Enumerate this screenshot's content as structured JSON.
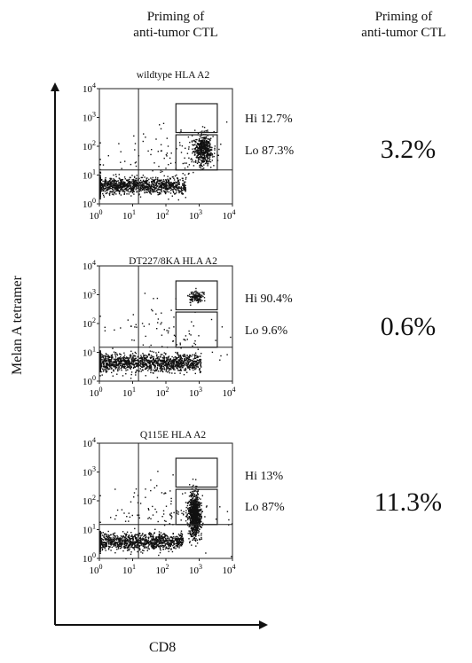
{
  "headers": {
    "left": [
      "Priming of",
      "anti-tumor CTL"
    ],
    "right": [
      "Priming of",
      "anti-tumor CTL"
    ]
  },
  "axes": {
    "y_label": "Melan A tetramer",
    "x_label": "CD8"
  },
  "tick_labels": [
    {
      "base": "10",
      "exp": "0"
    },
    {
      "base": "10",
      "exp": "1"
    },
    {
      "base": "10",
      "exp": "2"
    },
    {
      "base": "10",
      "exp": "3"
    },
    {
      "base": "10",
      "exp": "4"
    }
  ],
  "colors": {
    "dot": "#111111",
    "frame": "#222222",
    "background": "#ffffff"
  },
  "chart_data": [
    {
      "type": "scatter",
      "title": "wildtype HLA A2",
      "xscale": "log",
      "yscale": "log",
      "xlim": [
        1,
        10000
      ],
      "ylim": [
        1,
        10000
      ],
      "gates": [
        {
          "label": "Hi 12.7%",
          "x": [
            200,
            3500
          ],
          "y": [
            300,
            3000
          ]
        },
        {
          "label": "Lo 87.3%",
          "x": [
            200,
            3500
          ],
          "y": [
            15,
            250
          ]
        }
      ],
      "priming_percent": "3.2%",
      "populations": [
        {
          "name": "double negative",
          "x_log_center": 0.9,
          "x_log_spread": 1.05,
          "y_log_center": 0.65,
          "y_log_spread": 0.28,
          "n": 1400
        },
        {
          "name": "CD8+ tetramer+",
          "x_log_center": 3.1,
          "x_log_spread": 0.28,
          "y_log_center": 1.9,
          "y_log_spread": 0.55,
          "n": 520
        },
        {
          "name": "scatter",
          "x_log_center": 2.0,
          "x_log_spread": 1.8,
          "y_log_center": 1.5,
          "y_log_spread": 1.1,
          "n": 110
        }
      ]
    },
    {
      "type": "scatter",
      "title": "DT227/8KA HLA A2",
      "xscale": "log",
      "yscale": "log",
      "xlim": [
        1,
        10000
      ],
      "ylim": [
        1,
        10000
      ],
      "gates": [
        {
          "label": "Hi 90.4%",
          "x": [
            200,
            3500
          ],
          "y": [
            300,
            3000
          ]
        },
        {
          "label": "Lo 9.6%",
          "x": [
            200,
            3500
          ],
          "y": [
            15,
            250
          ]
        }
      ],
      "priming_percent": "0.6%",
      "populations": [
        {
          "name": "double negative",
          "x_log_center": 1.2,
          "x_log_spread": 1.15,
          "y_log_center": 0.65,
          "y_log_spread": 0.3,
          "n": 1500
        },
        {
          "name": "CD8+ tetramer hi",
          "x_log_center": 2.9,
          "x_log_spread": 0.22,
          "y_log_center": 2.95,
          "y_log_spread": 0.2,
          "n": 130
        },
        {
          "name": "scatter",
          "x_log_center": 2.0,
          "x_log_spread": 1.8,
          "y_log_center": 1.5,
          "y_log_spread": 1.1,
          "n": 90
        }
      ]
    },
    {
      "type": "scatter",
      "title": "Q115E HLA A2",
      "xscale": "log",
      "yscale": "log",
      "xlim": [
        1,
        10000
      ],
      "ylim": [
        1,
        10000
      ],
      "gates": [
        {
          "label": "Hi 13%",
          "x": [
            200,
            3500
          ],
          "y": [
            300,
            3000
          ]
        },
        {
          "label": "Lo 87%",
          "x": [
            200,
            3500
          ],
          "y": [
            15,
            250
          ]
        }
      ],
      "priming_percent": "11.3%",
      "populations": [
        {
          "name": "double negative",
          "x_log_center": 0.9,
          "x_log_spread": 1.0,
          "y_log_center": 0.6,
          "y_log_spread": 0.28,
          "n": 1300
        },
        {
          "name": "CD8+ tetramer+",
          "x_log_center": 2.85,
          "x_log_spread": 0.18,
          "y_log_center": 1.5,
          "y_log_spread": 0.75,
          "n": 900
        },
        {
          "name": "scatter",
          "x_log_center": 2.0,
          "x_log_spread": 1.8,
          "y_log_center": 1.6,
          "y_log_spread": 1.1,
          "n": 120
        }
      ]
    }
  ]
}
